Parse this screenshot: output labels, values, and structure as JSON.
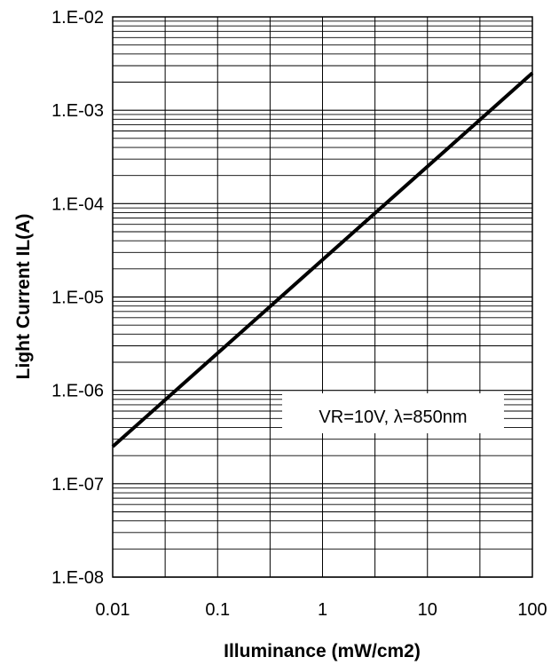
{
  "chart_data": {
    "type": "line",
    "title": "",
    "xlabel": "Illuminance (mW/cm2)",
    "ylabel": "Light Current IL(A)",
    "x_scale": "log",
    "y_scale": "log",
    "xlim": [
      0.01,
      100
    ],
    "ylim": [
      1e-08,
      0.01
    ],
    "x_ticks": [
      "0.01",
      "0.1",
      "1",
      "10",
      "100"
    ],
    "y_ticks": [
      "1.E-08",
      "1.E-07",
      "1.E-06",
      "1.E-05",
      "1.E-04",
      "1.E-03",
      "1.E-02"
    ],
    "grid": true,
    "annotation": "VR=10V, λ=850nm",
    "series": [
      {
        "x": [
          0.01,
          0.1,
          1,
          10,
          100
        ],
        "y": [
          2.5e-07,
          2.5e-06,
          2.5e-05,
          0.00025,
          0.0025
        ]
      }
    ]
  }
}
